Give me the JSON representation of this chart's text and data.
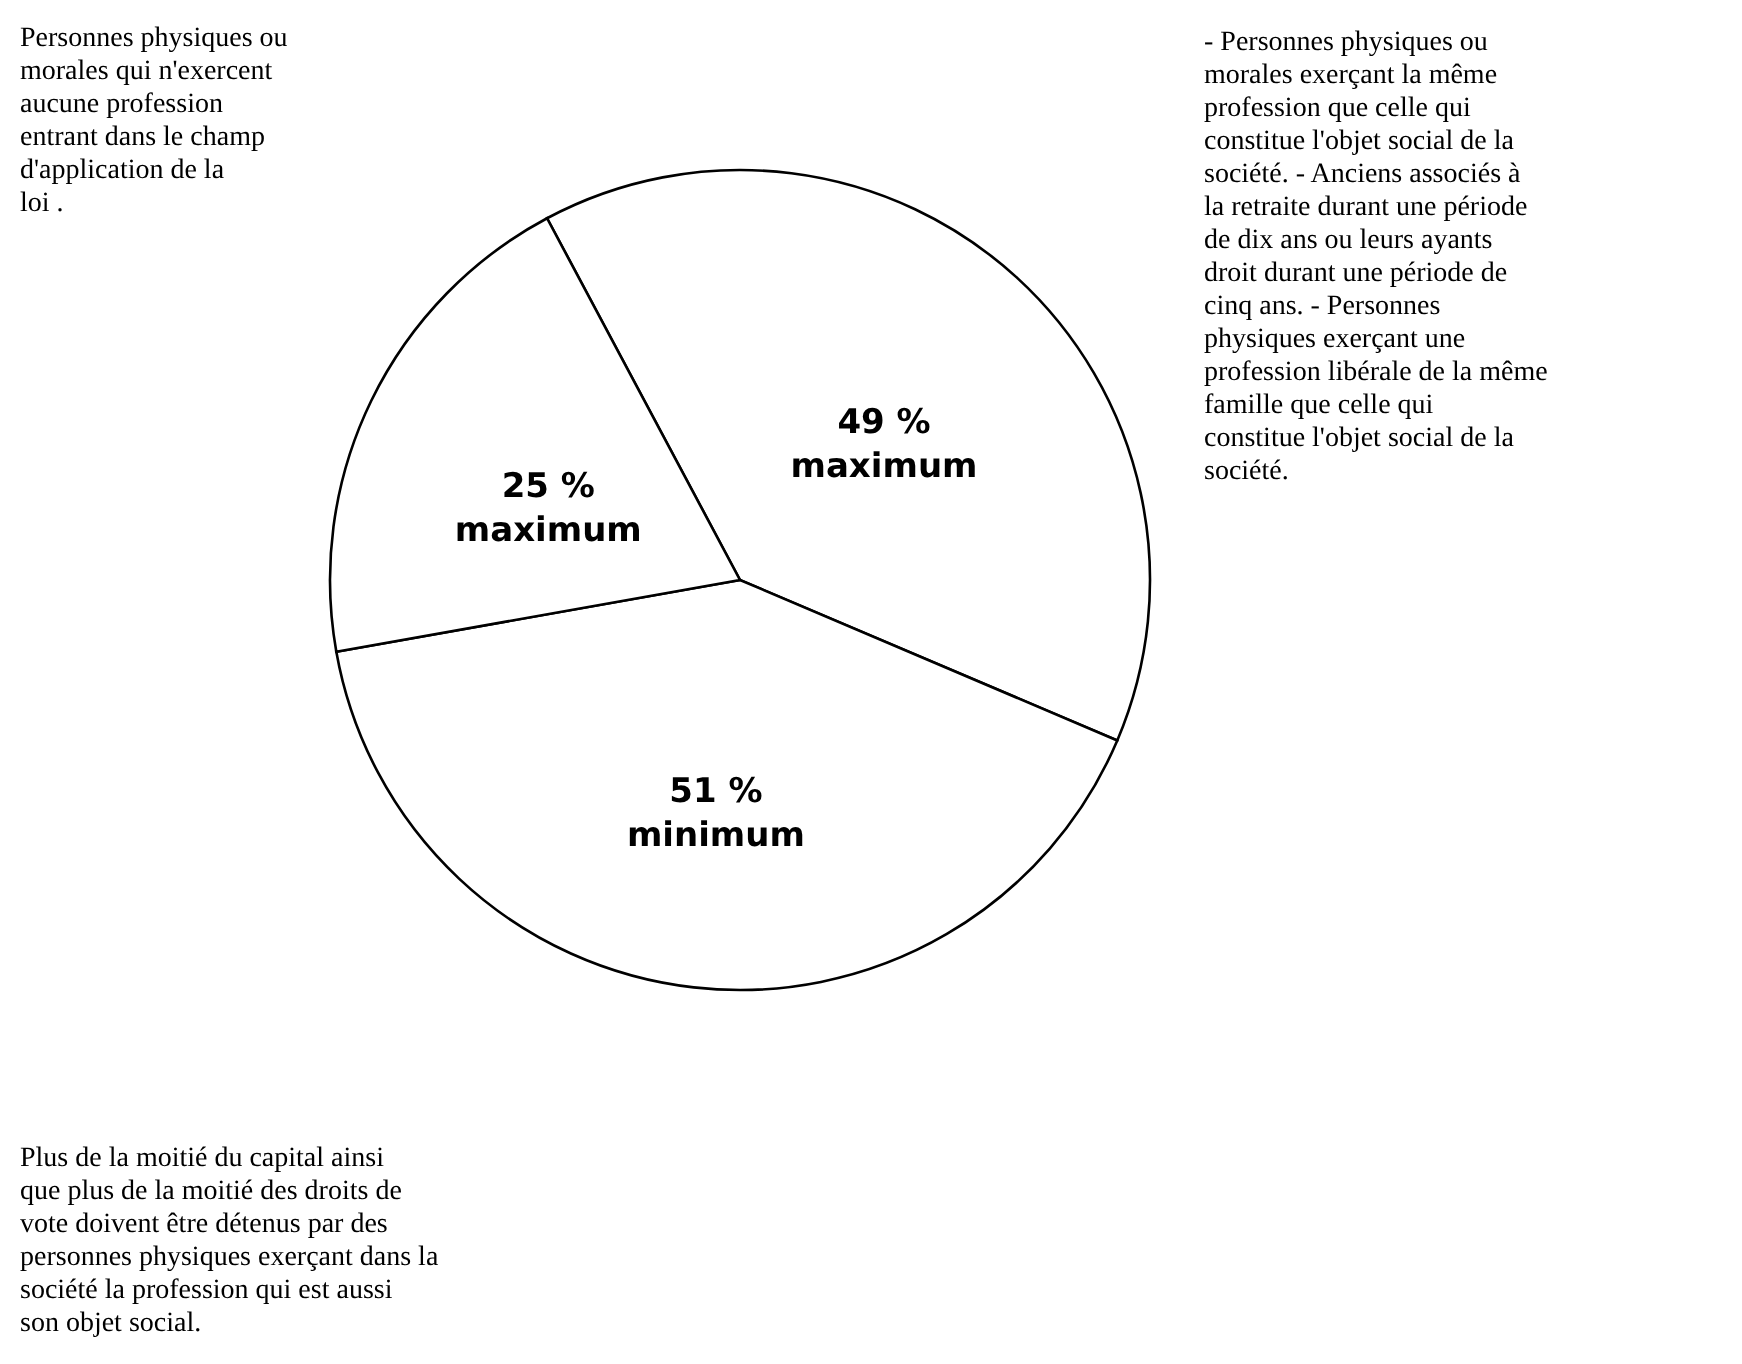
{
  "chart_data": {
    "type": "pie",
    "categories": [
      "- Personnes physiques ou morales exerçant la même profession que celle qui constitue l'objet social de la société. - Anciens associés à la retraite durant une période de dix ans ou leurs ayants droit durant une période de cinq ans. - Personnes physiques exerçant une profession libérale de la même famille que celle qui constitue l'objet social de la société.",
      "Plus de la moitié du capital ainsi que plus de la moitié des droits de vote doivent être détenus par des personnes physiques exerçant dans la société la profession qui est aussi son objet social.",
      "Personnes physiques ou morales qui n'exercent aucune profession entrant dans le champ d'application de la loi ."
    ],
    "values": [
      49,
      51,
      25
    ],
    "value_labels": [
      "49 % maximum",
      "51 % minimum",
      "25 % maximum"
    ],
    "colors": [
      "#ffffff",
      "#ffffff",
      "#ffffff"
    ]
  }
}
